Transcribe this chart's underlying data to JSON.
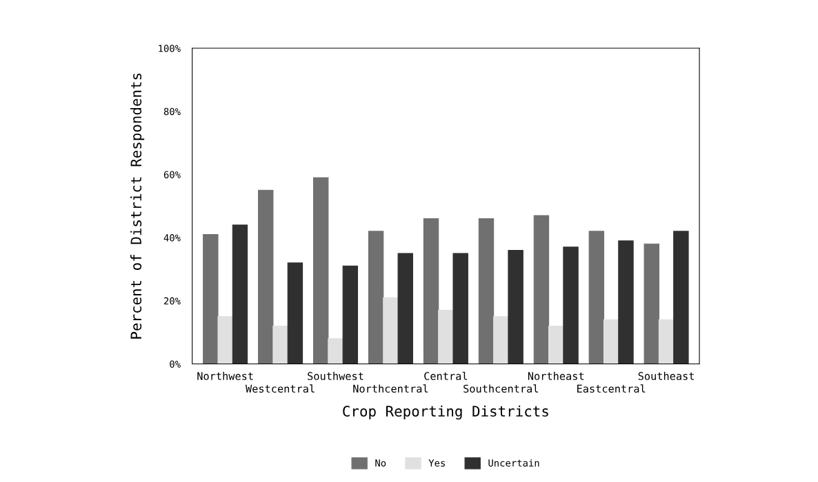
{
  "chart_data": {
    "type": "bar",
    "xlabel": "Crop Reporting Districts",
    "ylabel": "Percent of District Respondents",
    "categories": [
      "Northwest",
      "Westcentral",
      "Southwest",
      "Northcentral",
      "Central",
      "Southcentral",
      "Northeast",
      "Eastcentral",
      "Southeast"
    ],
    "series": [
      {
        "name": "No",
        "color": "#707070",
        "values": [
          41,
          55,
          59,
          42,
          46,
          46,
          47,
          42,
          38
        ]
      },
      {
        "name": "Yes",
        "color": "#e0e0e0",
        "values": [
          15,
          12,
          8,
          21,
          17,
          15,
          12,
          14,
          14
        ]
      },
      {
        "name": "Uncertain",
        "color": "#303030",
        "values": [
          44,
          32,
          31,
          35,
          35,
          36,
          37,
          39,
          42
        ]
      }
    ],
    "ylim": [
      0,
      100
    ],
    "yticks": [
      {
        "value": 0,
        "label": "0%"
      },
      {
        "value": 20,
        "label": "20%"
      },
      {
        "value": 40,
        "label": "40%"
      },
      {
        "value": 60,
        "label": "60%"
      },
      {
        "value": 80,
        "label": "80%"
      },
      {
        "value": 100,
        "label": "100%"
      }
    ],
    "legend": "bottom",
    "grid": false
  }
}
